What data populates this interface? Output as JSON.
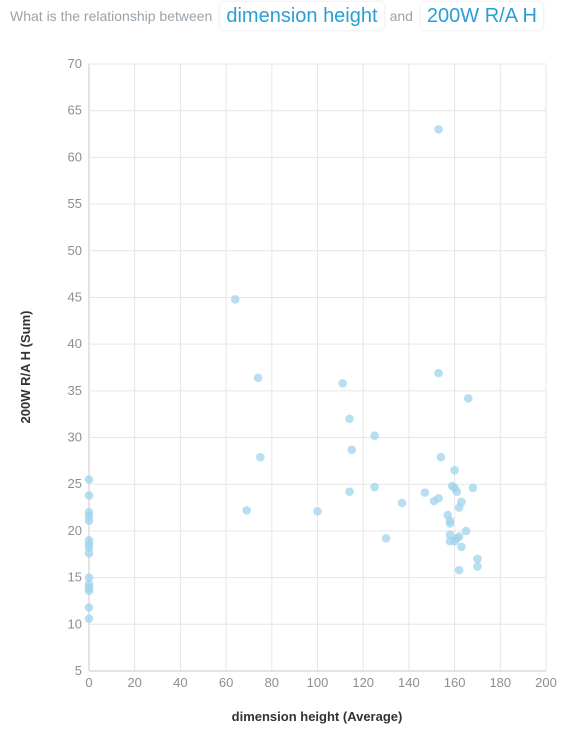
{
  "question": {
    "prefix": "What is the relationship between",
    "field_x": "dimension height",
    "connector": "and",
    "field_y": "200W R/A H"
  },
  "colors": {
    "point": "#9fd3ec",
    "pill_text": "#2a9fd6"
  },
  "chart_data": {
    "type": "scatter",
    "xlabel": "dimension height (Average)",
    "ylabel": "200W R/A H (Sum)",
    "xlim": [
      0,
      200
    ],
    "ylim": [
      5,
      70
    ],
    "xticks": [
      0,
      20,
      40,
      60,
      80,
      100,
      120,
      140,
      160,
      180,
      200
    ],
    "yticks": [
      5,
      10,
      15,
      20,
      25,
      30,
      35,
      40,
      45,
      50,
      55,
      60,
      65,
      70
    ],
    "grid": true,
    "points": [
      [
        0,
        25.5
      ],
      [
        0,
        23.8
      ],
      [
        0,
        22
      ],
      [
        0,
        21.6
      ],
      [
        0,
        21.1
      ],
      [
        0,
        19
      ],
      [
        0,
        18.6
      ],
      [
        0,
        18.2
      ],
      [
        0,
        17.6
      ],
      [
        0,
        15
      ],
      [
        0,
        14.3
      ],
      [
        0,
        13.9
      ],
      [
        0,
        13.6
      ],
      [
        0,
        11.8
      ],
      [
        0,
        10.6
      ],
      [
        64,
        44.8
      ],
      [
        69,
        22.2
      ],
      [
        74,
        36.4
      ],
      [
        75,
        27.9
      ],
      [
        100,
        22.1
      ],
      [
        111,
        35.8
      ],
      [
        114,
        32
      ],
      [
        114,
        24.2
      ],
      [
        115,
        28.7
      ],
      [
        125,
        30.2
      ],
      [
        125,
        24.7
      ],
      [
        130,
        19.2
      ],
      [
        137,
        23
      ],
      [
        147,
        24.1
      ],
      [
        151,
        23.2
      ],
      [
        153,
        63
      ],
      [
        153,
        36.9
      ],
      [
        153,
        23.5
      ],
      [
        154,
        27.9
      ],
      [
        157,
        21.7
      ],
      [
        158,
        21.1
      ],
      [
        158,
        20.8
      ],
      [
        158,
        19.6
      ],
      [
        158,
        18.9
      ],
      [
        159,
        24.8
      ],
      [
        160,
        26.5
      ],
      [
        160,
        24.6
      ],
      [
        160,
        18.9
      ],
      [
        161,
        24.2
      ],
      [
        161,
        19.2
      ],
      [
        162,
        22.5
      ],
      [
        162,
        19.4
      ],
      [
        162,
        15.8
      ],
      [
        163,
        23.1
      ],
      [
        163,
        18.3
      ],
      [
        165,
        20
      ],
      [
        166,
        34.2
      ],
      [
        168,
        24.6
      ],
      [
        170,
        17
      ],
      [
        170,
        16.2
      ]
    ]
  }
}
